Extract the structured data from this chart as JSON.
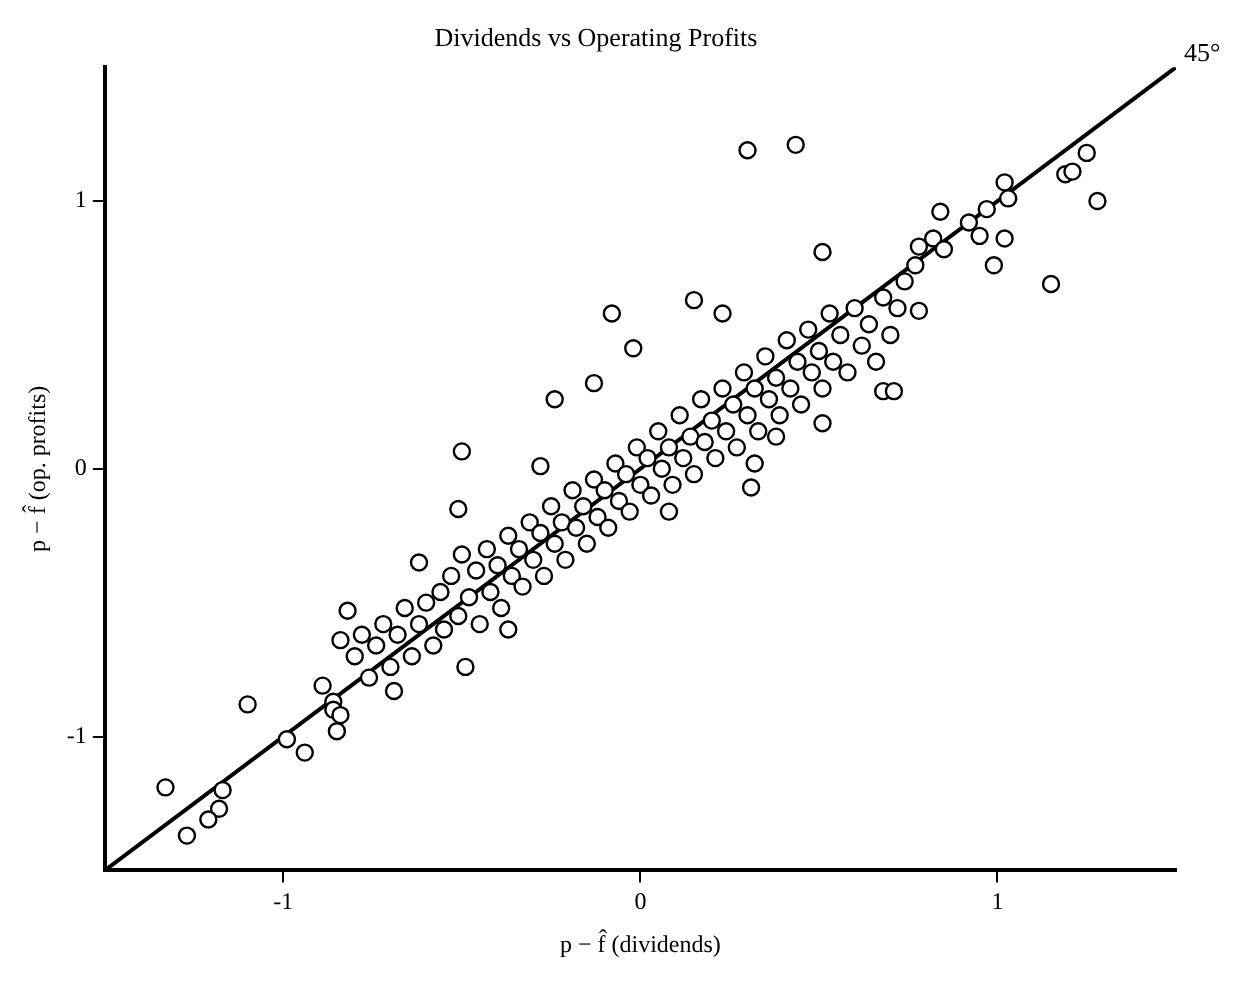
{
  "chart_data": {
    "type": "scatter",
    "title": "Dividends vs Operating Profits",
    "xlabel": "p − f̂ (dividends)",
    "ylabel": "p − f̂ (op. profits)",
    "xlim": [
      -1.5,
      1.5
    ],
    "ylim": [
      -1.5,
      1.5
    ],
    "xticks": [
      -1,
      0,
      1
    ],
    "yticks": [
      -1,
      0,
      1
    ],
    "grid": false,
    "legend": false,
    "annotations": [
      {
        "text": "45°",
        "x": 1.5,
        "y": 1.5
      }
    ],
    "series": [
      {
        "marker": "circle",
        "color": "#000000",
        "x": [
          0.3,
          0.435,
          1.25,
          1.19,
          1.21,
          1.28,
          1.02,
          1.03,
          0.97,
          0.92,
          0.84,
          0.95,
          1.02,
          0.82,
          0.78,
          0.85,
          0.51,
          0.99,
          0.77,
          1.15,
          -0.08,
          -0.02,
          -0.13,
          -0.24,
          -0.5,
          -0.28,
          -0.51,
          -0.62,
          0.15,
          0.23,
          0.78,
          0.68,
          0.71,
          0.51,
          0.31,
          0.32,
          0.38,
          0.08,
          -0.82,
          -0.84,
          -1.1,
          -0.99,
          -0.94,
          -1.33,
          -1.17,
          -1.18,
          -1.21,
          -1.27,
          -0.89,
          -0.86,
          -0.86,
          -0.84,
          -0.85,
          -0.49,
          -0.37,
          -0.69,
          -0.8,
          -0.78,
          -0.76,
          -0.74,
          -0.72,
          -0.7,
          -0.68,
          -0.66,
          -0.64,
          -0.62,
          -0.6,
          -0.58,
          -0.56,
          -0.55,
          -0.53,
          -0.51,
          -0.5,
          -0.48,
          -0.46,
          -0.45,
          -0.43,
          -0.42,
          -0.4,
          -0.39,
          -0.37,
          -0.36,
          -0.34,
          -0.33,
          -0.31,
          -0.3,
          -0.28,
          -0.27,
          -0.25,
          -0.24,
          -0.22,
          -0.21,
          -0.19,
          -0.18,
          -0.16,
          -0.15,
          -0.13,
          -0.12,
          -0.1,
          -0.09,
          -0.07,
          -0.06,
          -0.04,
          -0.03,
          -0.01,
          0.0,
          0.02,
          0.03,
          0.05,
          0.06,
          0.08,
          0.09,
          0.11,
          0.12,
          0.14,
          0.15,
          0.17,
          0.18,
          0.2,
          0.21,
          0.23,
          0.24,
          0.26,
          0.27,
          0.29,
          0.3,
          0.32,
          0.33,
          0.35,
          0.36,
          0.38,
          0.39,
          0.41,
          0.42,
          0.44,
          0.45,
          0.47,
          0.48,
          0.5,
          0.51,
          0.53,
          0.54,
          0.56,
          0.58,
          0.6,
          0.62,
          0.64,
          0.66,
          0.68,
          0.7,
          0.72,
          0.74
        ],
        "values": [
          1.19,
          1.21,
          1.18,
          1.1,
          1.11,
          1.0,
          1.07,
          1.01,
          0.97,
          0.92,
          0.96,
          0.87,
          0.86,
          0.86,
          0.83,
          0.82,
          0.81,
          0.76,
          0.76,
          0.69,
          0.58,
          0.45,
          0.32,
          0.26,
          0.065,
          0.01,
          -0.15,
          -0.35,
          0.63,
          0.58,
          0.59,
          0.29,
          0.29,
          0.17,
          -0.07,
          0.02,
          0.12,
          -0.16,
          -0.53,
          -0.64,
          -0.88,
          -1.01,
          -1.06,
          -1.19,
          -1.2,
          -1.27,
          -1.31,
          -1.37,
          -0.81,
          -0.87,
          -0.9,
          -0.92,
          -0.98,
          -0.74,
          -0.6,
          -0.83,
          -0.7,
          -0.62,
          -0.78,
          -0.66,
          -0.58,
          -0.74,
          -0.62,
          -0.52,
          -0.7,
          -0.58,
          -0.5,
          -0.66,
          -0.46,
          -0.6,
          -0.4,
          -0.55,
          -0.32,
          -0.48,
          -0.38,
          -0.58,
          -0.3,
          -0.46,
          -0.36,
          -0.52,
          -0.25,
          -0.4,
          -0.3,
          -0.44,
          -0.2,
          -0.34,
          -0.24,
          -0.4,
          -0.14,
          -0.28,
          -0.2,
          -0.34,
          -0.08,
          -0.22,
          -0.14,
          -0.28,
          -0.04,
          -0.18,
          -0.08,
          -0.22,
          0.02,
          -0.12,
          -0.02,
          -0.16,
          0.08,
          -0.06,
          0.04,
          -0.1,
          0.14,
          0.0,
          0.08,
          -0.06,
          0.2,
          0.04,
          0.12,
          -0.02,
          0.26,
          0.1,
          0.18,
          0.04,
          0.3,
          0.14,
          0.24,
          0.08,
          0.36,
          0.2,
          0.3,
          0.14,
          0.42,
          0.26,
          0.34,
          0.2,
          0.48,
          0.3,
          0.4,
          0.24,
          0.52,
          0.36,
          0.44,
          0.3,
          0.58,
          0.4,
          0.5,
          0.36,
          0.6,
          0.46,
          0.54,
          0.4,
          0.64,
          0.5,
          0.6,
          0.7
        ]
      },
      {
        "type": "line",
        "marker": "none",
        "color": "#000000",
        "x": [
          -1.5,
          1.5
        ],
        "values": [
          -1.5,
          1.5
        ]
      }
    ]
  }
}
